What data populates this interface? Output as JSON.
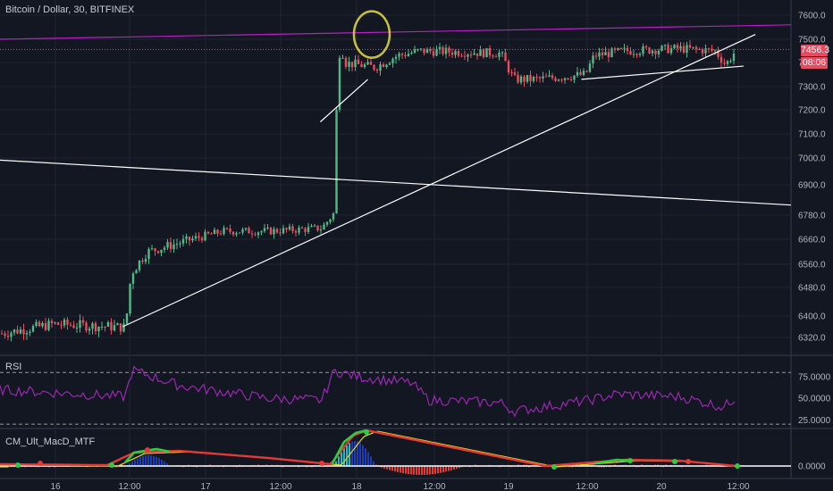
{
  "header": {
    "symbol_title": "Bitcoin / Dollar, 30, BITFINEX",
    "rsi_title": "RSI",
    "macd_title": "CM_Ult_MacD_MTF"
  },
  "price_tags": {
    "last_price": "7456.3",
    "countdown": "08:06"
  },
  "colors": {
    "background": "#131722",
    "grid": "#1f2433",
    "up": "#53b987",
    "down": "#eb4d5c",
    "rsi": "#9c27b0",
    "trend": "#ffffff",
    "resistance": "#b71fc4",
    "circle": "#c8c13a",
    "macd_green": "#2ecc40",
    "macd_red": "#e53935",
    "macd_yellow": "#d4d02a",
    "hist_blue": "#1f3cb5"
  },
  "chart_data": [
    {
      "type": "candlestick",
      "title": "Bitcoin / Dollar, 30, BITFINEX",
      "x_ticks": [
        "16",
        "12:00",
        "17",
        "12:00",
        "18",
        "12:00",
        "19",
        "12:00",
        "20",
        "12:00"
      ],
      "y_ticks": [
        7600.0,
        7500.0,
        7400.0,
        7300.0,
        7200.0,
        7100.0,
        7000.0,
        6900.0,
        6780.0,
        6660.0,
        6560.0,
        6480.0,
        6400.0,
        6320.0
      ],
      "ylim": [
        6290,
        7640
      ],
      "last_price": 7456.3,
      "grid": true,
      "annotations": {
        "trendlines": [
          {
            "from": [
              0,
              6992
            ],
            "to": [
              1.0,
              6820
            ],
            "name": "descending-line"
          },
          {
            "from": [
              0.155,
              6360
            ],
            "to": [
              0.955,
              7520
            ],
            "name": "rising-support"
          },
          {
            "from": [
              0,
              7500
            ],
            "to": [
              1.0,
              7560
            ],
            "name": "resistance-line"
          },
          {
            "from": [
              0.735,
              7330
            ],
            "to": [
              0.94,
              7385
            ],
            "name": "short-support"
          },
          {
            "from": [
              0.405,
              7150
            ],
            "to": [
              0.465,
              7330
            ],
            "name": "short-ramp"
          }
        ],
        "highlight_circle": {
          "x": 0.47,
          "y": 7520
        }
      }
    },
    {
      "type": "line",
      "title": "RSI",
      "y_ticks": [
        75.0,
        50.0,
        25.0
      ],
      "ylim": [
        15,
        100
      ],
      "bands": [
        80,
        20
      ],
      "series_name": ""
    },
    {
      "type": "line",
      "title": "CM_Ult_MacD_MTF",
      "y_ticks": [
        0.0
      ],
      "zero_line": true
    }
  ]
}
